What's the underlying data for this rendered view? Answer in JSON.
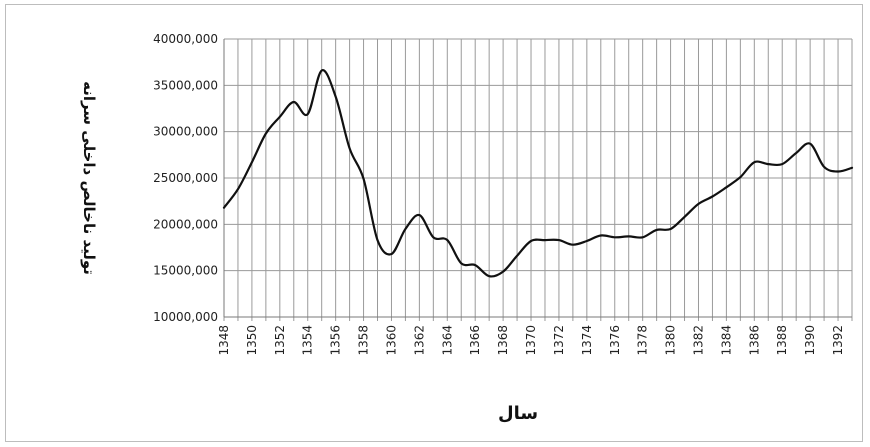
{
  "chart_data": {
    "type": "line",
    "title": "",
    "xlabel": "سال",
    "ylabel": "تولید ناخالص داخلی سرانه",
    "ylim": [
      10000000,
      40000000
    ],
    "yticks": [
      10000000,
      15000000,
      20000000,
      25000000,
      30000000,
      35000000,
      40000000
    ],
    "ytick_labels": [
      "10000,000",
      "15000,000",
      "20000,000",
      "25000,000",
      "30000,000",
      "35000,000",
      "40000,000"
    ],
    "xlim": [
      1348,
      1393
    ],
    "xtick_labels": [
      "1348",
      "1350",
      "1352",
      "1354",
      "1356",
      "1358",
      "1360",
      "1362",
      "1364",
      "1366",
      "1368",
      "1370",
      "1372",
      "1374",
      "1376",
      "1378",
      "1380",
      "1382",
      "1384",
      "1386",
      "1388",
      "1390",
      "1392"
    ],
    "grid": true,
    "legend": "none",
    "line_color": "#111111",
    "series": [
      {
        "x": [
          1348,
          1349,
          1350,
          1351,
          1352,
          1353,
          1354,
          1355,
          1356,
          1357,
          1358,
          1359,
          1360,
          1361,
          1362,
          1363,
          1364,
          1365,
          1366,
          1367,
          1368,
          1369,
          1370,
          1371,
          1372,
          1373,
          1374,
          1375,
          1376,
          1377,
          1378,
          1379,
          1380,
          1381,
          1382,
          1383,
          1384,
          1385,
          1386,
          1387,
          1388,
          1389,
          1390,
          1391,
          1392,
          1393
        ],
        "values": [
          21800000,
          23800000,
          26700000,
          29800000,
          31600000,
          33200000,
          31900000,
          36600000,
          33800000,
          28200000,
          24900000,
          18300000,
          16800000,
          19500000,
          21000000,
          18600000,
          18300000,
          15800000,
          15600000,
          14400000,
          14900000,
          16600000,
          18200000,
          18300000,
          18300000,
          17800000,
          18200000,
          18800000,
          18600000,
          18700000,
          18600000,
          19400000,
          19500000,
          20800000,
          22200000,
          23000000,
          24000000,
          25100000,
          26700000,
          26500000,
          26500000,
          27700000,
          28700000,
          26200000,
          25700000,
          26100000
        ]
      }
    ]
  }
}
